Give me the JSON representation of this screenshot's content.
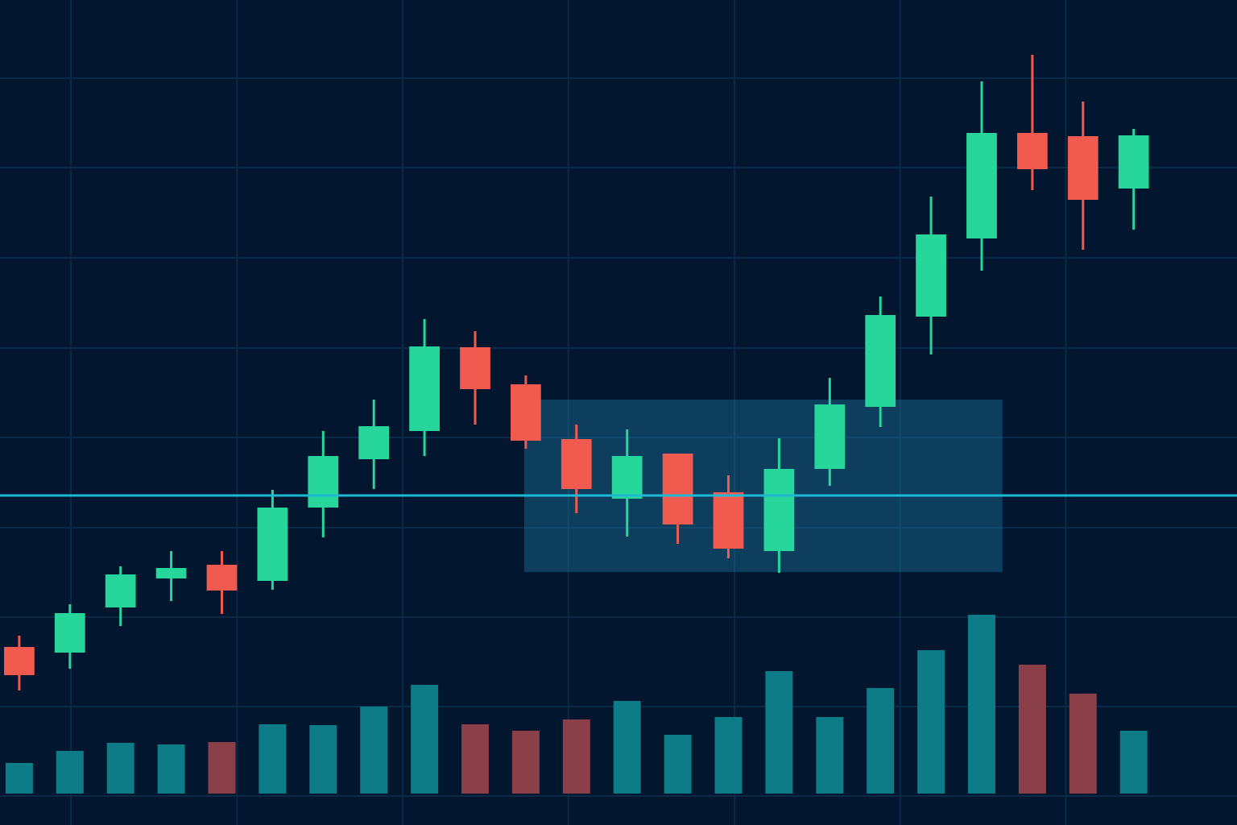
{
  "chart_data": {
    "type": "candlestick",
    "x": [
      0,
      1,
      2,
      3,
      4,
      5,
      6,
      7,
      8,
      9,
      10,
      11,
      12,
      13,
      14,
      15,
      16,
      17,
      18,
      19,
      20,
      21,
      22
    ],
    "open": [
      22.1,
      21.4,
      27.0,
      30.6,
      32.3,
      30.3,
      39.4,
      45.4,
      48.9,
      59.3,
      54.7,
      47.9,
      40.5,
      46.1,
      41.3,
      34.0,
      44.2,
      51.9,
      63.1,
      72.8,
      85.9,
      85.5,
      79.0
    ],
    "high": [
      23.5,
      27.4,
      32.1,
      34.0,
      34.0,
      41.6,
      48.9,
      52.8,
      62.8,
      61.3,
      55.8,
      49.7,
      49.1,
      46.1,
      43.4,
      48.0,
      55.5,
      65.6,
      78.0,
      92.3,
      95.6,
      89.8,
      86.4
    ],
    "low": [
      16.7,
      19.4,
      24.7,
      27.8,
      26.2,
      29.2,
      35.7,
      41.7,
      45.8,
      49.7,
      46.7,
      38.7,
      35.8,
      34.9,
      33.1,
      31.3,
      42.1,
      49.4,
      58.4,
      68.8,
      78.8,
      71.4,
      73.9
    ],
    "close": [
      18.6,
      26.3,
      31.1,
      31.9,
      29.1,
      39.4,
      45.8,
      49.5,
      59.4,
      54.1,
      47.7,
      41.7,
      45.8,
      37.3,
      34.3,
      44.2,
      52.2,
      63.3,
      73.3,
      85.9,
      81.4,
      77.6,
      85.6
    ],
    "up_color": "#26d69a",
    "down_color": "#f05a4f",
    "volume": [
      38,
      53,
      63,
      61,
      64,
      86,
      85,
      108,
      135,
      86,
      78,
      92,
      115,
      73,
      95,
      152,
      95,
      131,
      178,
      222,
      160,
      124,
      78
    ],
    "volume_colors": [
      "#0e7c86",
      "#0e7c86",
      "#0e7c86",
      "#0e7c86",
      "#8b4049",
      "#0e7c86",
      "#0e7c86",
      "#0e7c86",
      "#0e7c86",
      "#8b4049",
      "#8b4049",
      "#8b4049",
      "#0e7c86",
      "#0e7c86",
      "#0e7c86",
      "#0e7c86",
      "#0e7c86",
      "#0e7c86",
      "#0e7c86",
      "#0e7c86",
      "#8b4049",
      "#8b4049",
      "#0e7c86"
    ],
    "volume_ylim": [
      0,
      400
    ],
    "xlim": [
      -0.38,
      24.04
    ],
    "ylim": [
      0,
      102.4
    ],
    "xticks": [
      1.02,
      4.3,
      7.57,
      10.84,
      14.12,
      17.39,
      20.66
    ],
    "yticks": [
      92.7,
      81.6,
      70.4,
      59.2,
      48.1,
      36.9,
      25.8,
      14.7,
      3.6
    ],
    "grid": true,
    "grid_color": "#0b2a48",
    "hline": {
      "value": 40.9,
      "color": "#1fb8d3"
    },
    "zone": {
      "start": 9.97,
      "end": 19.41,
      "low": 31.4,
      "high": 52.8,
      "color": "#1a6e9a"
    }
  }
}
